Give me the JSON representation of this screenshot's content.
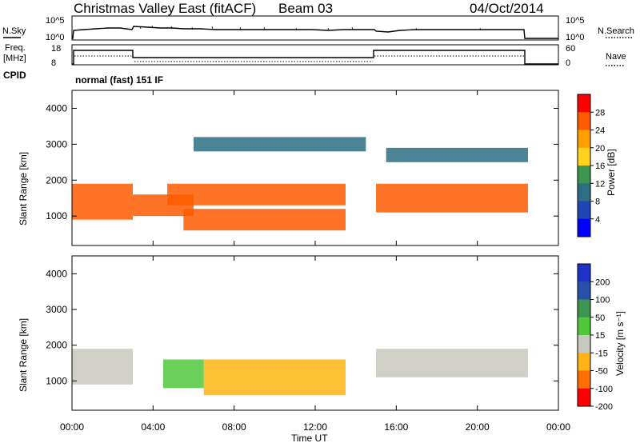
{
  "header": {
    "title": "Christmas Valley East (fitACF)",
    "beam": "Beam 03",
    "date": "04/Oct/2014"
  },
  "params": {
    "nsky_label": "N.Sky",
    "nsky_ticks": [
      "10^5",
      "10^0"
    ],
    "nsearch_label": "N.Search",
    "nsearch_ticks": [
      "10^5",
      "10^0"
    ],
    "freq_label_1": "Freq.",
    "freq_label_2": "[MHz]",
    "freq_ticks": [
      "18",
      "8"
    ],
    "nave_label": "Nave",
    "nave_ticks": [
      "60",
      "0"
    ],
    "cpid_label": "CPID",
    "cpid_value": "normal (fast) 151 IF"
  },
  "chart_data": [
    {
      "type": "heatmap",
      "name": "power",
      "ylabel": "Slant Range [km]",
      "yticks": [
        "4000",
        "3000",
        "2000",
        "1000"
      ],
      "ylim": [
        180,
        4500
      ],
      "colorbar_label": "Power [dB]",
      "colorbar_ticks": [
        "28",
        "24",
        "20",
        "16",
        "12",
        "8",
        "4"
      ],
      "colorbar_colors": [
        "#ff0000",
        "#ff5a00",
        "#ffa000",
        "#ffd21e",
        "#3c9650",
        "#2e6e82",
        "#1e46b4",
        "#0000ff"
      ],
      "echo_bands": [
        {
          "t": [
            0.0,
            3.0
          ],
          "range_km": [
            900,
            1900
          ],
          "level": "high"
        },
        {
          "t": [
            3.0,
            6.0
          ],
          "range_km": [
            1000,
            1600
          ],
          "level": "high"
        },
        {
          "t": [
            4.7,
            13.5
          ],
          "range_km": [
            1300,
            1900
          ],
          "level": "high"
        },
        {
          "t": [
            5.5,
            13.5
          ],
          "range_km": [
            600,
            1200
          ],
          "level": "high"
        },
        {
          "t": [
            15.0,
            22.5
          ],
          "range_km": [
            1100,
            1900
          ],
          "level": "high"
        },
        {
          "t": [
            6.0,
            14.5
          ],
          "range_km": [
            2800,
            3200
          ],
          "level": "low"
        },
        {
          "t": [
            15.5,
            22.5
          ],
          "range_km": [
            2500,
            2900
          ],
          "level": "low"
        }
      ]
    },
    {
      "type": "heatmap",
      "name": "velocity",
      "ylabel": "Slant Range [km]",
      "yticks": [
        "4000",
        "3000",
        "2000",
        "1000"
      ],
      "ylim": [
        180,
        4500
      ],
      "colorbar_label": "Velocity [m s⁻¹]",
      "colorbar_ticks": [
        "200",
        "100",
        "50",
        "15",
        "-15",
        "-50",
        "-100",
        "-200"
      ],
      "colorbar_colors": [
        "#1e32c8",
        "#2850aa",
        "#3c9650",
        "#50c83c",
        "#c8c8c0",
        "#ffb414",
        "#ff6e00",
        "#ff0000"
      ],
      "echo_bands": [
        {
          "t": [
            0.0,
            3.0
          ],
          "range_km": [
            900,
            1900
          ],
          "level": "ground"
        },
        {
          "t": [
            4.5,
            6.5
          ],
          "range_km": [
            800,
            1600
          ],
          "level": "positive"
        },
        {
          "t": [
            6.5,
            13.5
          ],
          "range_km": [
            600,
            1600
          ],
          "level": "negative"
        },
        {
          "t": [
            15.0,
            22.5
          ],
          "range_km": [
            1100,
            1900
          ],
          "level": "ground"
        }
      ],
      "xlabel": "Time UT",
      "xticks": [
        "00:00",
        "04:00",
        "08:00",
        "12:00",
        "16:00",
        "20:00",
        "00:00"
      ],
      "xlim": [
        0,
        24
      ]
    }
  ]
}
